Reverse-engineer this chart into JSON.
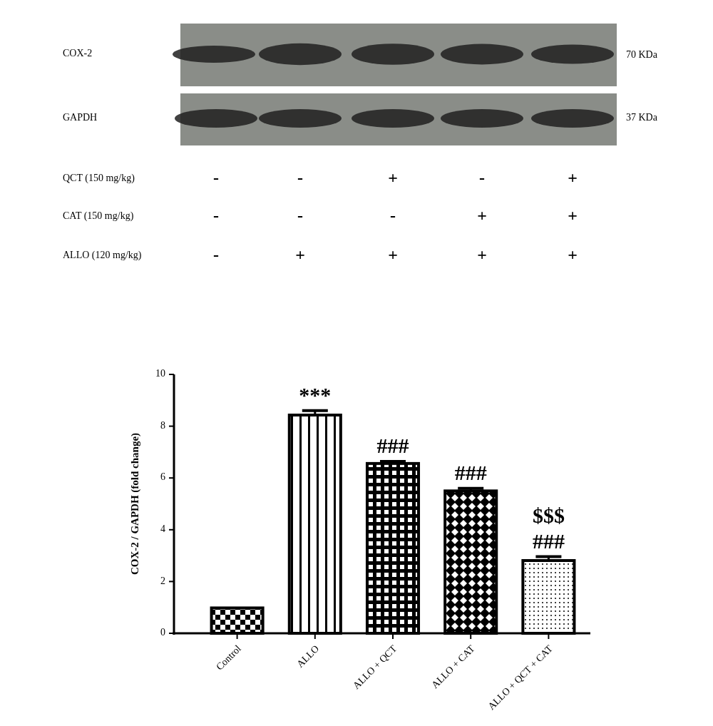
{
  "chart_data": [
    {
      "type": "other",
      "annotations": [
        "COX-2",
        "70 KDa",
        "GAPDH",
        "37 KDa",
        "QCT (150 mg/kg)",
        "-",
        "-",
        "+",
        "-",
        "+",
        "CAT (150 mg/kg)",
        "-",
        "-",
        "-",
        "+",
        "+",
        "ALLO (120 mg/kg)",
        "-",
        "+",
        "+",
        "+",
        "+"
      ]
    },
    {
      "type": "bar",
      "ylabel": "COX-2 / GAPDH (fold change)",
      "categories": [
        "Control",
        "ALLO",
        "ALLO + QCT",
        "ALLO + CAT",
        "ALLO + QCT + CAT"
      ],
      "values": [
        0.98,
        8.43,
        6.56,
        5.5,
        2.81
      ],
      "errors": [
        null,
        0.17,
        0.08,
        0.1,
        0.15
      ],
      "color": "#000000",
      "ylim": [
        0,
        10
      ],
      "yticks": [
        0,
        2,
        4,
        6,
        8,
        10
      ],
      "grid": false,
      "annotations": [
        {
          "text": "***",
          "x": "ALLO",
          "y": 8.6
        },
        {
          "text": "###",
          "x": "ALLO + QCT",
          "y": 6.64
        },
        {
          "text": "###",
          "x": "ALLO + CAT",
          "y": 5.6
        },
        {
          "text": "###",
          "x": "ALLO + QCT + CAT",
          "y": 2.96
        },
        {
          "text": "$$$",
          "x": "ALLO + QCT + CAT",
          "y": 2.96
        }
      ]
    }
  ]
}
